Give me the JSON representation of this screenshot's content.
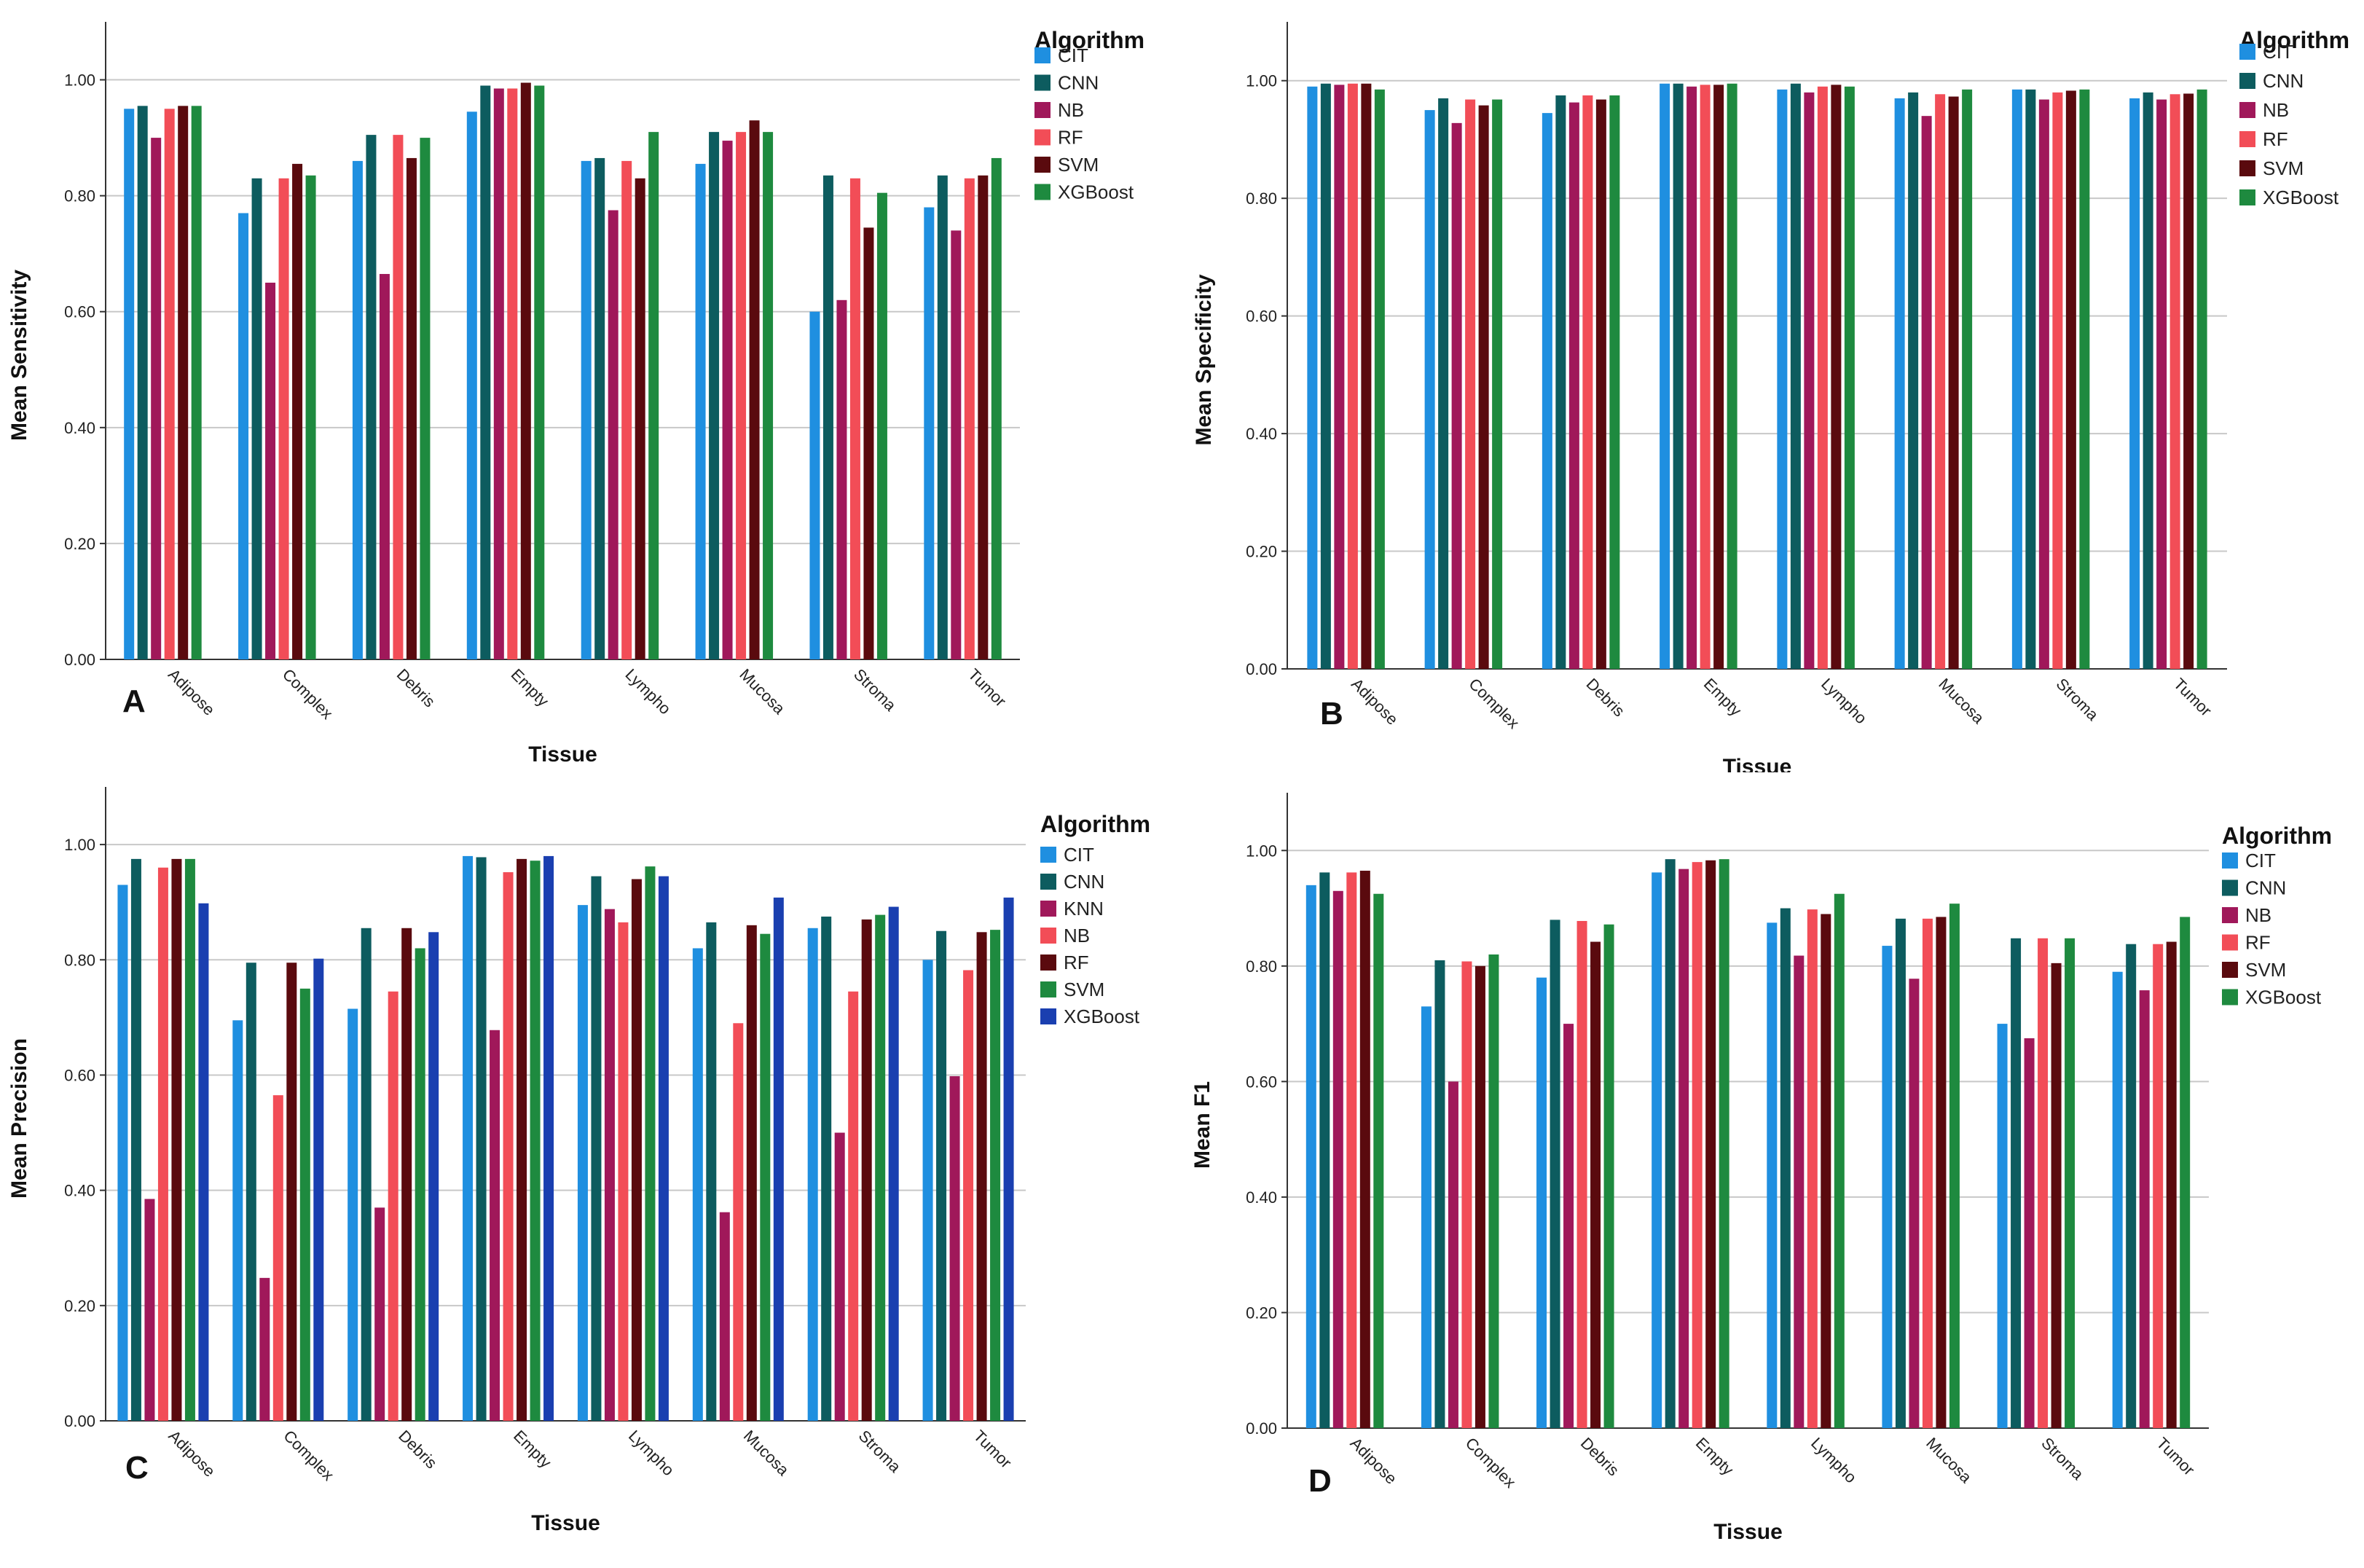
{
  "figure": {
    "panels": [
      {
        "id": "A",
        "letter": "A"
      },
      {
        "id": "B",
        "letter": "B"
      },
      {
        "id": "C",
        "letter": "C"
      },
      {
        "id": "D",
        "letter": "D"
      }
    ]
  },
  "chart_data": [
    {
      "id": "A",
      "type": "bar",
      "title": "",
      "xlabel": "Tissue",
      "ylabel": "Mean Sensitivity",
      "ylim": [
        0,
        1.1
      ],
      "yticks": [
        "0.00",
        "0.20",
        "0.40",
        "0.60",
        "0.80",
        "1.00"
      ],
      "grid": true,
      "legend_title": "Algorithm",
      "legend_position": "top-right",
      "categories": [
        "Adipose",
        "Complex",
        "Debris",
        "Empty",
        "Lympho",
        "Mucosa",
        "Stroma",
        "Tumor"
      ],
      "series": [
        {
          "name": "CIT",
          "color": "#1f8fe0",
          "values": [
            0.95,
            0.77,
            0.86,
            0.945,
            0.86,
            0.855,
            0.6,
            0.78
          ]
        },
        {
          "name": "CNN",
          "color": "#0d5c5f",
          "values": [
            0.955,
            0.83,
            0.905,
            0.99,
            0.865,
            0.91,
            0.835,
            0.835
          ]
        },
        {
          "name": "NB",
          "color": "#a0185a",
          "values": [
            0.9,
            0.65,
            0.665,
            0.985,
            0.775,
            0.895,
            0.62,
            0.74
          ]
        },
        {
          "name": "RF",
          "color": "#f24d57",
          "values": [
            0.95,
            0.83,
            0.905,
            0.985,
            0.86,
            0.91,
            0.83,
            0.83
          ]
        },
        {
          "name": "SVM",
          "color": "#5a0a0e",
          "values": [
            0.955,
            0.855,
            0.865,
            0.995,
            0.83,
            0.93,
            0.745,
            0.835
          ]
        },
        {
          "name": "XGBoost",
          "color": "#1e8a3f",
          "values": [
            0.955,
            0.835,
            0.9,
            0.99,
            0.91,
            0.91,
            0.805,
            0.865
          ]
        }
      ]
    },
    {
      "id": "B",
      "type": "bar",
      "title": "",
      "xlabel": "Tissue",
      "ylabel": "Mean Specificity",
      "ylim": [
        0,
        1.1
      ],
      "yticks": [
        "0.00",
        "0.20",
        "0.40",
        "0.60",
        "0.80",
        "1.00"
      ],
      "grid": true,
      "legend_title": "Algorithm",
      "legend_position": "top-right",
      "categories": [
        "Adipose",
        "Complex",
        "Debris",
        "Empty",
        "Lympho",
        "Mucosa",
        "Stroma",
        "Tumor"
      ],
      "series": [
        {
          "name": "CIT",
          "color": "#1f8fe0",
          "values": [
            0.99,
            0.95,
            0.945,
            0.995,
            0.985,
            0.97,
            0.985,
            0.97
          ]
        },
        {
          "name": "CNN",
          "color": "#0d5c5f",
          "values": [
            0.995,
            0.97,
            0.975,
            0.995,
            0.995,
            0.98,
            0.985,
            0.98
          ]
        },
        {
          "name": "NB",
          "color": "#a0185a",
          "values": [
            0.993,
            0.928,
            0.963,
            0.99,
            0.98,
            0.94,
            0.968,
            0.968
          ]
        },
        {
          "name": "RF",
          "color": "#f24d57",
          "values": [
            0.995,
            0.968,
            0.975,
            0.993,
            0.99,
            0.977,
            0.98,
            0.977
          ]
        },
        {
          "name": "SVM",
          "color": "#5a0a0e",
          "values": [
            0.995,
            0.958,
            0.968,
            0.993,
            0.993,
            0.973,
            0.983,
            0.978
          ]
        },
        {
          "name": "XGBoost",
          "color": "#1e8a3f",
          "values": [
            0.985,
            0.968,
            0.975,
            0.995,
            0.99,
            0.985,
            0.985,
            0.985
          ]
        }
      ]
    },
    {
      "id": "C",
      "type": "bar",
      "title": "",
      "xlabel": "Tissue",
      "ylabel": "Mean Precision",
      "ylim": [
        0,
        1.1
      ],
      "yticks": [
        "0.00",
        "0.20",
        "0.40",
        "0.60",
        "0.80",
        "1.00"
      ],
      "grid": true,
      "legend_title": "Algorithm",
      "legend_position": "top-right",
      "categories": [
        "Adipose",
        "Complex",
        "Debris",
        "Empty",
        "Lympho",
        "Mucosa",
        "Stroma",
        "Tumor"
      ],
      "series": [
        {
          "name": "CIT",
          "color": "#1f8fe0",
          "values": [
            0.93,
            0.695,
            0.715,
            0.98,
            0.895,
            0.82,
            0.855,
            0.8
          ]
        },
        {
          "name": "CNN",
          "color": "#0d5c5f",
          "values": [
            0.975,
            0.795,
            0.855,
            0.978,
            0.945,
            0.865,
            0.875,
            0.85
          ]
        },
        {
          "name": "KNN",
          "color": "#a0185a",
          "values": [
            0.385,
            0.248,
            0.37,
            0.678,
            0.888,
            0.362,
            0.5,
            0.598
          ]
        },
        {
          "name": "NB",
          "color": "#f24d57",
          "values": [
            0.96,
            0.565,
            0.745,
            0.952,
            0.865,
            0.69,
            0.745,
            0.782
          ]
        },
        {
          "name": "RF",
          "color": "#5a0a0e",
          "values": [
            0.975,
            0.795,
            0.855,
            0.975,
            0.94,
            0.86,
            0.87,
            0.848
          ]
        },
        {
          "name": "SVM",
          "color": "#1e8a3f",
          "values": [
            0.975,
            0.75,
            0.82,
            0.972,
            0.962,
            0.845,
            0.878,
            0.852
          ]
        },
        {
          "name": "XGBoost",
          "color": "#1a3fb0",
          "values": [
            0.898,
            0.802,
            0.848,
            0.98,
            0.945,
            0.908,
            0.892,
            0.908
          ]
        }
      ]
    },
    {
      "id": "D",
      "type": "bar",
      "title": "",
      "xlabel": "Tissue",
      "ylabel": "Mean F1",
      "ylim": [
        0,
        1.1
      ],
      "yticks": [
        "0.00",
        "0.20",
        "0.40",
        "0.60",
        "0.80",
        "1.00"
      ],
      "grid": true,
      "legend_title": "Algorithm",
      "legend_position": "top-right",
      "categories": [
        "Adipose",
        "Complex",
        "Debris",
        "Empty",
        "Lympho",
        "Mucosa",
        "Stroma",
        "Tumor"
      ],
      "series": [
        {
          "name": "CIT",
          "color": "#1f8fe0",
          "values": [
            0.94,
            0.73,
            0.78,
            0.962,
            0.875,
            0.835,
            0.7,
            0.79
          ]
        },
        {
          "name": "CNN",
          "color": "#0d5c5f",
          "values": [
            0.962,
            0.81,
            0.88,
            0.985,
            0.9,
            0.882,
            0.848,
            0.838
          ]
        },
        {
          "name": "NB",
          "color": "#a0185a",
          "values": [
            0.93,
            0.6,
            0.7,
            0.968,
            0.818,
            0.778,
            0.675,
            0.758
          ]
        },
        {
          "name": "RF",
          "color": "#f24d57",
          "values": [
            0.962,
            0.808,
            0.878,
            0.98,
            0.898,
            0.882,
            0.848,
            0.838
          ]
        },
        {
          "name": "SVM",
          "color": "#5a0a0e",
          "values": [
            0.965,
            0.8,
            0.842,
            0.983,
            0.89,
            0.885,
            0.805,
            0.842
          ]
        },
        {
          "name": "XGBoost",
          "color": "#1e8a3f",
          "values": [
            0.925,
            0.82,
            0.872,
            0.985,
            0.925,
            0.908,
            0.848,
            0.885
          ]
        }
      ]
    }
  ]
}
